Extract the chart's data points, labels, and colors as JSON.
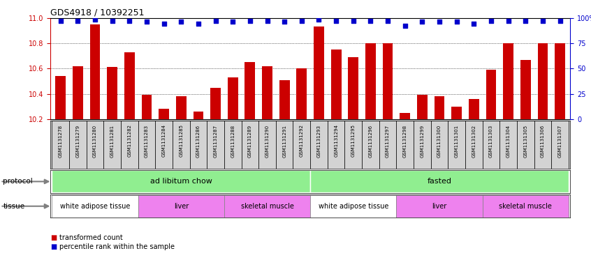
{
  "title": "GDS4918 / 10392251",
  "samples": [
    "GSM1131278",
    "GSM1131279",
    "GSM1131280",
    "GSM1131281",
    "GSM1131282",
    "GSM1131283",
    "GSM1131284",
    "GSM1131285",
    "GSM1131286",
    "GSM1131287",
    "GSM1131288",
    "GSM1131289",
    "GSM1131290",
    "GSM1131291",
    "GSM1131292",
    "GSM1131293",
    "GSM1131294",
    "GSM1131295",
    "GSM1131296",
    "GSM1131297",
    "GSM1131298",
    "GSM1131299",
    "GSM1131300",
    "GSM1131301",
    "GSM1131302",
    "GSM1131303",
    "GSM1131304",
    "GSM1131305",
    "GSM1131306",
    "GSM1131307"
  ],
  "bar_values": [
    10.54,
    10.62,
    10.95,
    10.61,
    10.73,
    10.39,
    10.28,
    10.38,
    10.26,
    10.45,
    10.53,
    10.65,
    10.62,
    10.51,
    10.6,
    10.93,
    10.75,
    10.69,
    10.8,
    10.8,
    10.25,
    10.39,
    10.38,
    10.3,
    10.36,
    10.59,
    10.8,
    10.67,
    10.8,
    10.8
  ],
  "percentile_values": [
    97,
    97,
    98,
    97,
    97,
    96,
    94,
    96,
    94,
    97,
    96,
    97,
    97,
    96,
    97,
    98,
    97,
    97,
    97,
    97,
    92,
    96,
    96,
    96,
    94,
    97,
    97,
    97,
    97,
    97
  ],
  "bar_color": "#cc0000",
  "percentile_color": "#0000cc",
  "ylim_left": [
    10.2,
    11.0
  ],
  "yticks_left": [
    10.2,
    10.4,
    10.6,
    10.8,
    11.0
  ],
  "ylim_right": [
    0,
    100
  ],
  "yticks_right": [
    0,
    25,
    50,
    75,
    100
  ],
  "protocol_labels": [
    "ad libitum chow",
    "fasted"
  ],
  "protocol_ranges": [
    [
      0,
      14
    ],
    [
      15,
      29
    ]
  ],
  "protocol_color": "#90ee90",
  "tissue_groups": [
    {
      "label": "white adipose tissue",
      "range": [
        0,
        4
      ],
      "color": "#ffffff"
    },
    {
      "label": "liver",
      "range": [
        5,
        9
      ],
      "color": "#ee82ee"
    },
    {
      "label": "skeletal muscle",
      "range": [
        10,
        14
      ],
      "color": "#ee82ee"
    },
    {
      "label": "white adipose tissue",
      "range": [
        15,
        19
      ],
      "color": "#ffffff"
    },
    {
      "label": "liver",
      "range": [
        20,
        24
      ],
      "color": "#ee82ee"
    },
    {
      "label": "skeletal muscle",
      "range": [
        25,
        29
      ],
      "color": "#ee82ee"
    }
  ],
  "legend_bar_label": "transformed count",
  "legend_pct_label": "percentile rank within the sample",
  "xticklabel_bg": "#d3d3d3",
  "label_arrow_color": "#808080"
}
